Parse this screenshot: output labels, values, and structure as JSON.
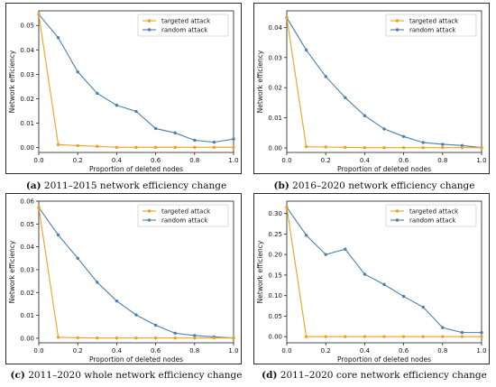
{
  "colors": {
    "targeted": "#f0a020",
    "random": "#4a7fb0",
    "axis": "#222222"
  },
  "chart_data": [
    {
      "type": "line",
      "caption_label": "(a)",
      "caption_text": "2011–2015 network efficiency change",
      "xlabel": "Proportion of deleted nodes",
      "ylabel": "Network efficiency",
      "legend_position": "top-right",
      "xlim": [
        0.0,
        1.0
      ],
      "ylim": [
        -0.002,
        0.056
      ],
      "xticks": [
        "0.0",
        "0.2",
        "0.4",
        "0.6",
        "0.8",
        "1.0"
      ],
      "yticks": [
        "0.00",
        "0.01",
        "0.02",
        "0.03",
        "0.04",
        "0.05"
      ],
      "x": [
        0.0,
        0.1,
        0.2,
        0.3,
        0.4,
        0.5,
        0.6,
        0.7,
        0.8,
        0.9,
        1.0
      ],
      "series": [
        {
          "name": "targeted attack",
          "values": [
            0.0545,
            0.0012,
            0.0008,
            0.0005,
            0.0001,
            0.0001,
            0.0001,
            0.0001,
            0.0001,
            0.0001,
            0.0001
          ]
        },
        {
          "name": "random attack",
          "values": [
            0.0545,
            0.045,
            0.031,
            0.0222,
            0.0173,
            0.0148,
            0.0078,
            0.006,
            0.003,
            0.0022,
            0.0035
          ]
        }
      ]
    },
    {
      "type": "line",
      "caption_label": "(b)",
      "caption_text": "2016–2020 network efficiency change",
      "xlabel": "Proportion of deleted nodes",
      "ylabel": "Network efficiency",
      "legend_position": "top-right",
      "xlim": [
        0.0,
        1.0
      ],
      "ylim": [
        -0.0015,
        0.0455
      ],
      "xticks": [
        "0.0",
        "0.2",
        "0.4",
        "0.6",
        "0.8",
        "1.0"
      ],
      "yticks": [
        "0.00",
        "0.01",
        "0.02",
        "0.03",
        "0.04"
      ],
      "x": [
        0.0,
        0.1,
        0.2,
        0.3,
        0.4,
        0.5,
        0.6,
        0.7,
        0.8,
        0.9,
        1.0
      ],
      "series": [
        {
          "name": "targeted attack",
          "values": [
            0.0432,
            0.0004,
            0.0003,
            0.0002,
            0.0001,
            0.0001,
            0.0001,
            0.0001,
            0.0001,
            0.0001,
            0.0001
          ]
        },
        {
          "name": "random attack",
          "values": [
            0.0432,
            0.0325,
            0.0237,
            0.0167,
            0.0107,
            0.0063,
            0.0038,
            0.0018,
            0.0012,
            0.0008,
            0.0001
          ]
        }
      ]
    },
    {
      "type": "line",
      "caption_label": "(c)",
      "caption_text": "2011–2020 whole network efficiency change",
      "xlabel": "Proportion of deleted nodes",
      "ylabel": "Network efficiency",
      "legend_position": "top-right",
      "xlim": [
        0.0,
        1.0
      ],
      "ylim": [
        -0.002,
        0.06
      ],
      "xticks": [
        "0.0",
        "0.2",
        "0.4",
        "0.6",
        "0.8",
        "1.0"
      ],
      "yticks": [
        "0.00",
        "0.01",
        "0.02",
        "0.03",
        "0.04",
        "0.05",
        "0.06"
      ],
      "x": [
        0.0,
        0.1,
        0.2,
        0.3,
        0.4,
        0.5,
        0.6,
        0.7,
        0.8,
        0.9,
        1.0
      ],
      "series": [
        {
          "name": "targeted attack",
          "values": [
            0.0572,
            0.0004,
            0.0002,
            0.0001,
            0.0001,
            0.0001,
            0.0001,
            0.0001,
            0.0001,
            0.0001,
            0.0001
          ]
        },
        {
          "name": "random attack",
          "values": [
            0.0572,
            0.0452,
            0.035,
            0.0245,
            0.0163,
            0.0102,
            0.0057,
            0.0022,
            0.0012,
            0.0006,
            0.0001
          ]
        }
      ]
    },
    {
      "type": "line",
      "caption_label": "(d)",
      "caption_text": "2011–2020 core network efficiency change",
      "xlabel": "Proportion of deleted nodes",
      "ylabel": "Network efficiency",
      "legend_position": "top-right",
      "xlim": [
        0.0,
        1.0
      ],
      "ylim": [
        -0.015,
        0.33
      ],
      "xticks": [
        "0.0",
        "0.2",
        "0.4",
        "0.6",
        "0.8",
        "1.0"
      ],
      "yticks": [
        "0.00",
        "0.05",
        "0.10",
        "0.15",
        "0.20",
        "0.25",
        "0.30"
      ],
      "x": [
        0.0,
        0.1,
        0.2,
        0.3,
        0.4,
        0.5,
        0.6,
        0.7,
        0.8,
        0.9,
        1.0
      ],
      "series": [
        {
          "name": "targeted attack",
          "values": [
            0.315,
            0.0,
            0.0,
            0.0,
            0.0,
            0.0,
            0.0,
            0.0,
            0.0,
            0.0,
            0.0
          ]
        },
        {
          "name": "random attack",
          "values": [
            0.315,
            0.247,
            0.2,
            0.213,
            0.152,
            0.127,
            0.098,
            0.072,
            0.022,
            0.01,
            0.01
          ]
        }
      ]
    }
  ]
}
